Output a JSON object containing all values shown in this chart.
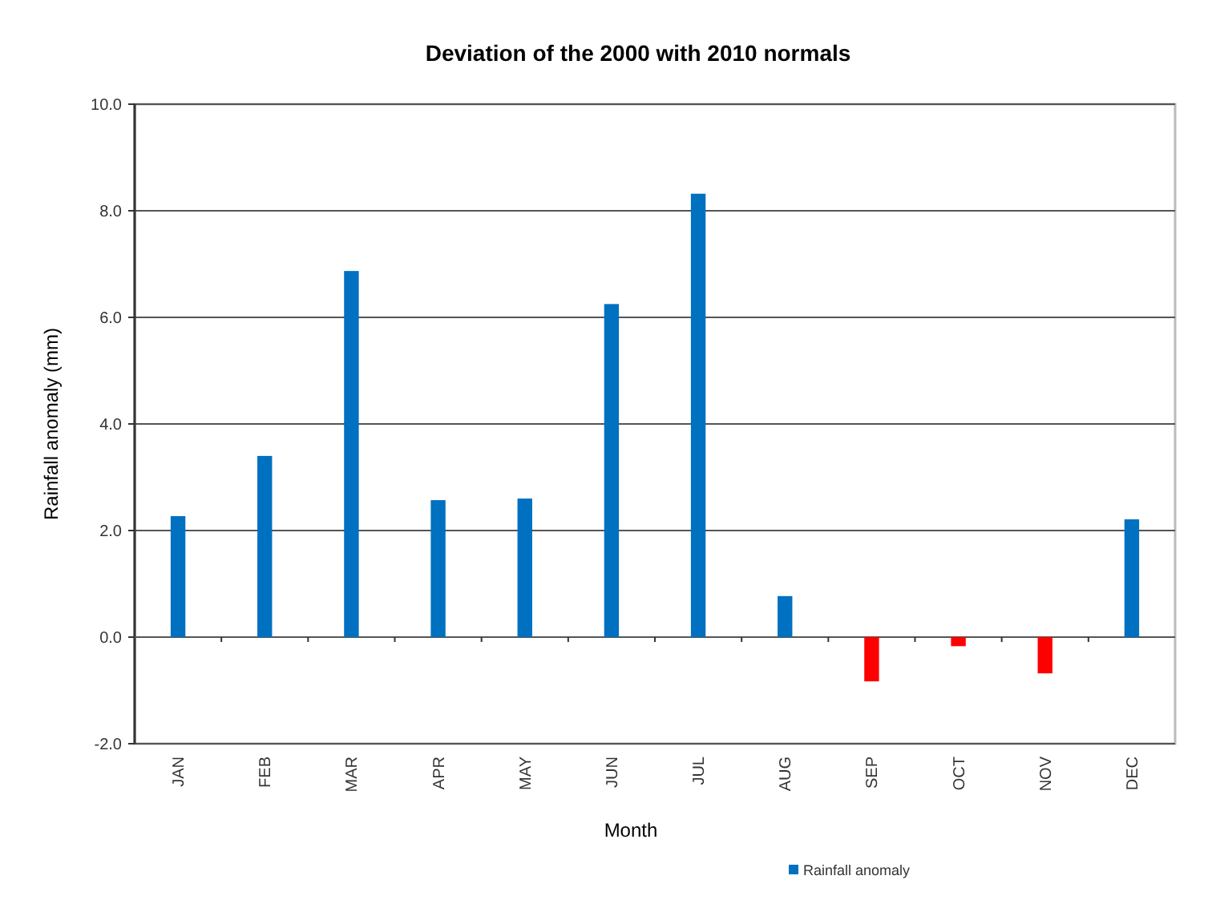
{
  "chart_data": {
    "type": "bar",
    "title": "Deviation of the 2000 with 2010 normals",
    "xlabel": "Month",
    "ylabel": "Rainfall anomaly  (mm)",
    "categories": [
      "JAN",
      "FEB",
      "MAR",
      "APR",
      "MAY",
      "JUN",
      "JUL",
      "AUG",
      "SEP",
      "OCT",
      "NOV",
      "DEC"
    ],
    "series": [
      {
        "name": "Rainfall anomaly",
        "color": "#0070c0",
        "colors": [
          "#0070c0",
          "#0070c0",
          "#0070c0",
          "#0070c0",
          "#0070c0",
          "#0070c0",
          "#0070c0",
          "#0070c0",
          "#ff0000",
          "#ff0000",
          "#ff0000",
          "#0070c0"
        ],
        "values": [
          2.27,
          3.4,
          6.87,
          2.57,
          2.6,
          6.25,
          8.32,
          0.77,
          -0.83,
          -0.17,
          -0.68,
          2.21
        ]
      }
    ],
    "ylim": [
      -2,
      10
    ],
    "yticks": [
      {
        "value": -2,
        "label": "-2.0"
      },
      {
        "value": 0,
        "label": "0.0"
      },
      {
        "value": 2,
        "label": "2.0"
      },
      {
        "value": 4,
        "label": "4.0"
      },
      {
        "value": 6,
        "label": "6.0"
      },
      {
        "value": 8,
        "label": "8.0"
      },
      {
        "value": 10,
        "label": "10.0"
      }
    ],
    "grid": "y",
    "legend": "bottom right"
  }
}
